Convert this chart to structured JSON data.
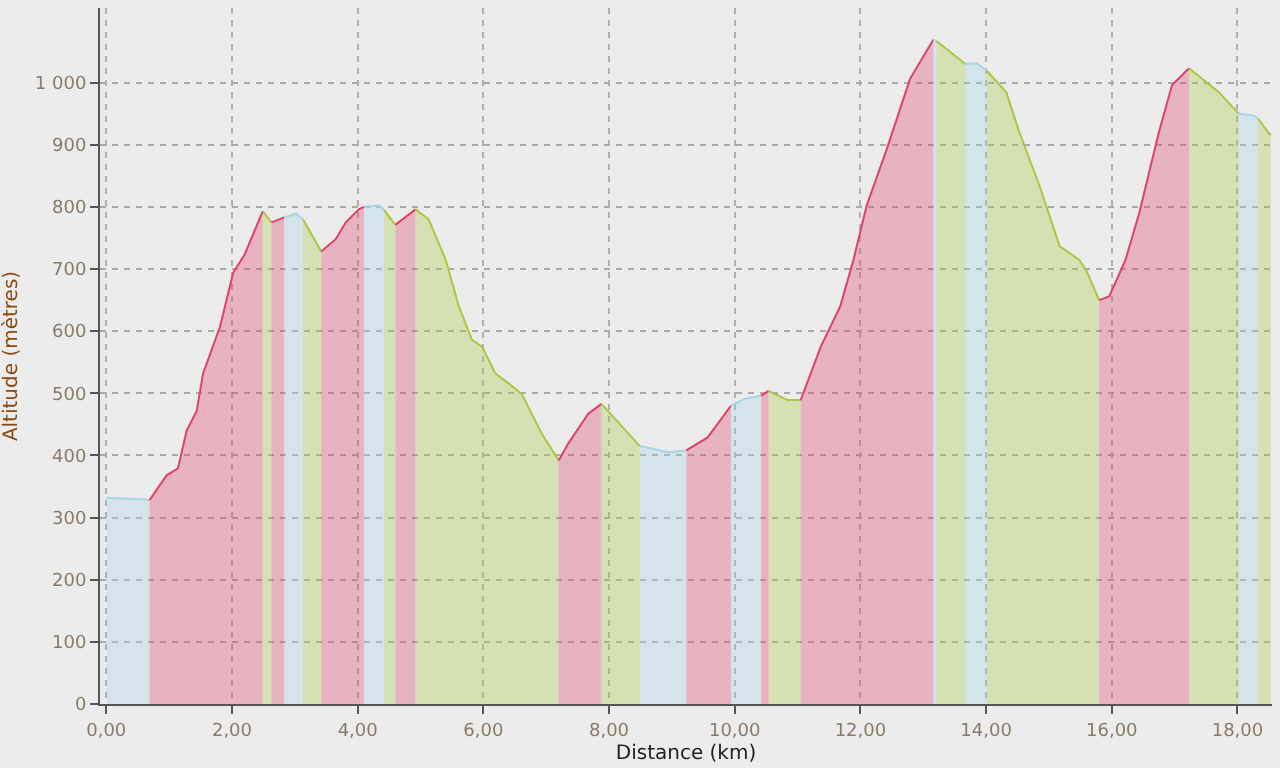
{
  "chart_data": {
    "type": "area",
    "xlabel": "Distance (km)",
    "ylabel": "Altitude (mètres)",
    "xlim": [
      -0.1,
      18.55
    ],
    "ylim": [
      0,
      1120
    ],
    "xticks": [
      {
        "value": 0,
        "label": "0,00"
      },
      {
        "value": 2,
        "label": "2,00"
      },
      {
        "value": 4,
        "label": "4,00"
      },
      {
        "value": 6,
        "label": "6,00"
      },
      {
        "value": 8,
        "label": "8,00"
      },
      {
        "value": 10,
        "label": "10,00"
      },
      {
        "value": 12,
        "label": "12,00"
      },
      {
        "value": 14,
        "label": "14,00"
      },
      {
        "value": 16,
        "label": "16,00"
      },
      {
        "value": 18,
        "label": "18,00"
      }
    ],
    "yticks": [
      0,
      100,
      200,
      300,
      400,
      500,
      600,
      700,
      800,
      900,
      {
        "value": 1000,
        "label": "1 000"
      }
    ],
    "grid": true,
    "series": [
      {
        "color": "#a8d4e6",
        "x": [
          0,
          0.64,
          0.69
        ],
        "values": [
          332,
          329,
          328
        ]
      },
      {
        "color": "#e0406a",
        "x": [
          0.69,
          0.96,
          1.14,
          1.28,
          1.44,
          1.54,
          1.81,
          2.02,
          2.2,
          2.49
        ],
        "values": [
          328,
          368,
          379,
          440,
          472,
          532,
          607,
          694,
          723,
          793
        ]
      },
      {
        "color": "#a8c840",
        "x": [
          2.49,
          2.56,
          2.63
        ],
        "values": [
          793,
          784,
          775
        ]
      },
      {
        "color": "#e0406a",
        "x": [
          2.63,
          2.73,
          2.83
        ],
        "values": [
          775,
          779,
          783
        ]
      },
      {
        "color": "#a8d4e6",
        "x": [
          2.83,
          3.02,
          3.13
        ],
        "values": [
          783,
          789,
          780
        ]
      },
      {
        "color": "#a8c840",
        "x": [
          3.13,
          3.42
        ],
        "values": [
          780,
          728
        ]
      },
      {
        "color": "#e0406a",
        "x": [
          3.42,
          3.65,
          3.81,
          4.02,
          4.1
        ],
        "values": [
          728,
          748,
          775,
          796,
          800
        ]
      },
      {
        "color": "#a8d4e6",
        "x": [
          4.1,
          4.34,
          4.42
        ],
        "values": [
          800,
          802,
          795
        ]
      },
      {
        "color": "#a8c840",
        "x": [
          4.42,
          4.51,
          4.6
        ],
        "values": [
          795,
          783,
          771
        ]
      },
      {
        "color": "#e0406a",
        "x": [
          4.6,
          4.92
        ],
        "values": [
          771,
          796
        ]
      },
      {
        "color": "#a8c840",
        "x": [
          4.92,
          5.13,
          5.4,
          5.61,
          5.82,
          5.98,
          6.19,
          6.4,
          6.61,
          6.93,
          7.2
        ],
        "values": [
          796,
          780,
          715,
          640,
          586,
          575,
          532,
          516,
          499,
          435,
          392
        ]
      },
      {
        "color": "#e0406a",
        "x": [
          7.2,
          7.35,
          7.67,
          7.88
        ],
        "values": [
          392,
          419,
          467,
          483
        ]
      },
      {
        "color": "#a8c840",
        "x": [
          7.88,
          8.49
        ],
        "values": [
          483,
          415
        ]
      },
      {
        "color": "#a8d4e6",
        "x": [
          8.49,
          8.94,
          9.23
        ],
        "values": [
          415,
          405,
          408
        ]
      },
      {
        "color": "#e0406a",
        "x": [
          9.23,
          9.57,
          9.94
        ],
        "values": [
          408,
          429,
          480
        ]
      },
      {
        "color": "#a8d4e6",
        "x": [
          9.94,
          10.15,
          10.42
        ],
        "values": [
          480,
          491,
          496
        ]
      },
      {
        "color": "#e0406a",
        "x": [
          10.42,
          10.54
        ],
        "values": [
          496,
          504
        ]
      },
      {
        "color": "#a8c840",
        "x": [
          10.54,
          10.84,
          11.05
        ],
        "values": [
          504,
          489,
          489
        ]
      },
      {
        "color": "#e0406a",
        "x": [
          11.05,
          11.37,
          11.68,
          11.89,
          12.1,
          12.42,
          12.79,
          13.16
        ],
        "values": [
          489,
          575,
          640,
          715,
          802,
          893,
          1006,
          1069
        ]
      },
      {
        "color": "#a8d4e6",
        "x": [
          13.16,
          13.21
        ],
        "values": [
          1069,
          1067
        ]
      },
      {
        "color": "#a8c840",
        "x": [
          13.21,
          13.67
        ],
        "values": [
          1067,
          1030
        ]
      },
      {
        "color": "#a8d4e6",
        "x": [
          13.67,
          13.85,
          14.01
        ],
        "values": [
          1030,
          1031,
          1019
        ]
      },
      {
        "color": "#a8c840",
        "x": [
          14.01,
          14.32,
          14.53,
          14.85,
          15.17,
          15.48,
          15.59,
          15.8
        ],
        "values": [
          1019,
          985,
          920,
          834,
          737,
          715,
          699,
          650
        ]
      },
      {
        "color": "#e0406a",
        "x": [
          15.8,
          15.96,
          16.22,
          16.44,
          16.75,
          16.96,
          17.23
        ],
        "values": [
          650,
          656,
          715,
          791,
          920,
          996,
          1023
        ]
      },
      {
        "color": "#a8c840",
        "x": [
          17.23,
          17.7,
          18.02
        ],
        "values": [
          1023,
          985,
          950
        ]
      },
      {
        "color": "#a8d4e6",
        "x": [
          18.02,
          18.26,
          18.33
        ],
        "values": [
          950,
          947,
          942
        ]
      },
      {
        "color": "#a8c840",
        "x": [
          18.33,
          18.43,
          18.53
        ],
        "values": [
          942,
          928,
          915
        ]
      }
    ]
  }
}
